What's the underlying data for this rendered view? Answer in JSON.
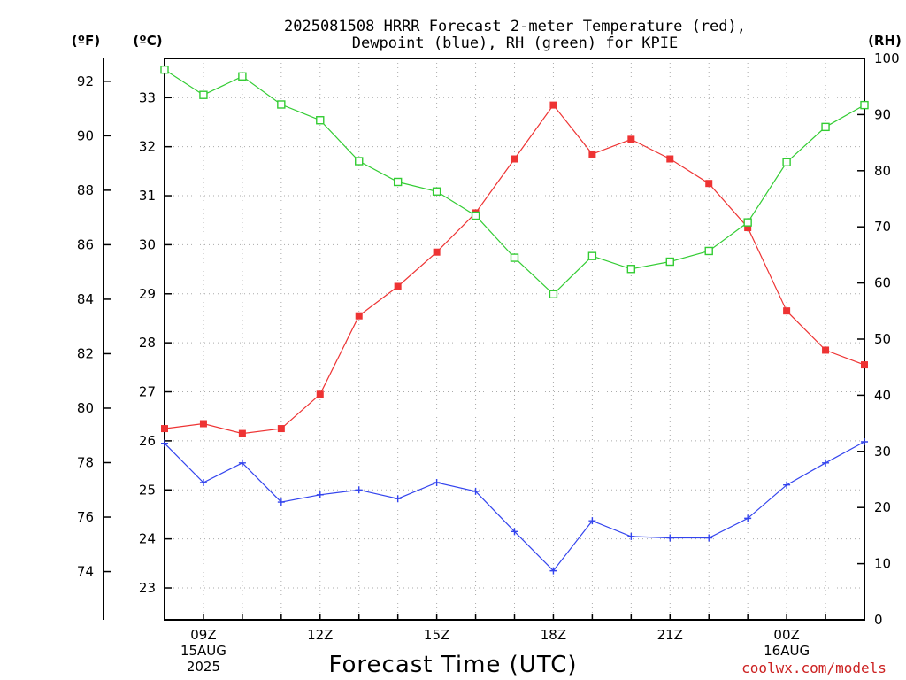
{
  "chart_data": {
    "type": "line",
    "title": "2025081508 HRRR Forecast 2-meter Temperature (red),",
    "subtitle": "Dewpoint (blue), RH (green) for KPIE",
    "xlabel": "Forecast Time (UTC)",
    "credit": "coolwx.com/models",
    "left_axis_f": {
      "label": "(ºF)",
      "ticks": [
        74,
        76,
        78,
        80,
        82,
        84,
        86,
        88,
        90,
        92
      ]
    },
    "left_axis_c": {
      "label": "(ºC)",
      "ticks": [
        23,
        24,
        25,
        26,
        27,
        28,
        29,
        30,
        31,
        32,
        33
      ],
      "ylim": [
        22.35,
        33.8
      ]
    },
    "right_axis": {
      "label": "(RH)",
      "ticks": [
        0,
        10,
        20,
        30,
        40,
        50,
        60,
        70,
        80,
        90,
        100
      ],
      "ylim": [
        0,
        100
      ]
    },
    "x": [
      "08Z",
      "09Z",
      "10Z",
      "11Z",
      "12Z",
      "13Z",
      "14Z",
      "15Z",
      "16Z",
      "17Z",
      "18Z",
      "19Z",
      "20Z",
      "21Z",
      "22Z",
      "23Z",
      "00Z",
      "01Z",
      "02Z"
    ],
    "x_tick_labels": [
      {
        "x": "09Z",
        "lines": [
          "09Z",
          "15AUG",
          "2025"
        ]
      },
      {
        "x": "12Z",
        "lines": [
          "12Z"
        ]
      },
      {
        "x": "15Z",
        "lines": [
          "15Z"
        ]
      },
      {
        "x": "18Z",
        "lines": [
          "18Z"
        ]
      },
      {
        "x": "21Z",
        "lines": [
          "21Z"
        ]
      },
      {
        "x": "00Z",
        "lines": [
          "00Z",
          "16AUG"
        ]
      }
    ],
    "series": [
      {
        "name": "Temperature",
        "axis": "celsius",
        "color": "#ee3333",
        "marker": "filled-square",
        "values": [
          26.25,
          26.35,
          26.15,
          26.25,
          26.95,
          28.55,
          29.15,
          29.85,
          30.65,
          31.75,
          32.85,
          31.85,
          32.15,
          31.75,
          31.25,
          30.35,
          28.65,
          27.85,
          27.55
        ]
      },
      {
        "name": "Dewpoint",
        "axis": "celsius",
        "color": "#3344ee",
        "marker": "plus",
        "values": [
          25.95,
          25.15,
          25.55,
          24.75,
          24.9,
          25.0,
          24.82,
          25.15,
          24.97,
          24.15,
          23.35,
          24.37,
          24.05,
          24.02,
          24.02,
          24.42,
          25.1,
          25.55,
          25.98
        ]
      },
      {
        "name": "RH",
        "axis": "rh",
        "color": "#33cc33",
        "marker": "open-square",
        "values": [
          98.0,
          93.5,
          96.8,
          91.8,
          89.0,
          81.7,
          78.0,
          76.3,
          72.0,
          64.5,
          58.0,
          64.8,
          62.5,
          63.8,
          65.7,
          70.8,
          81.5,
          87.8,
          91.7
        ]
      }
    ],
    "grid": true
  }
}
